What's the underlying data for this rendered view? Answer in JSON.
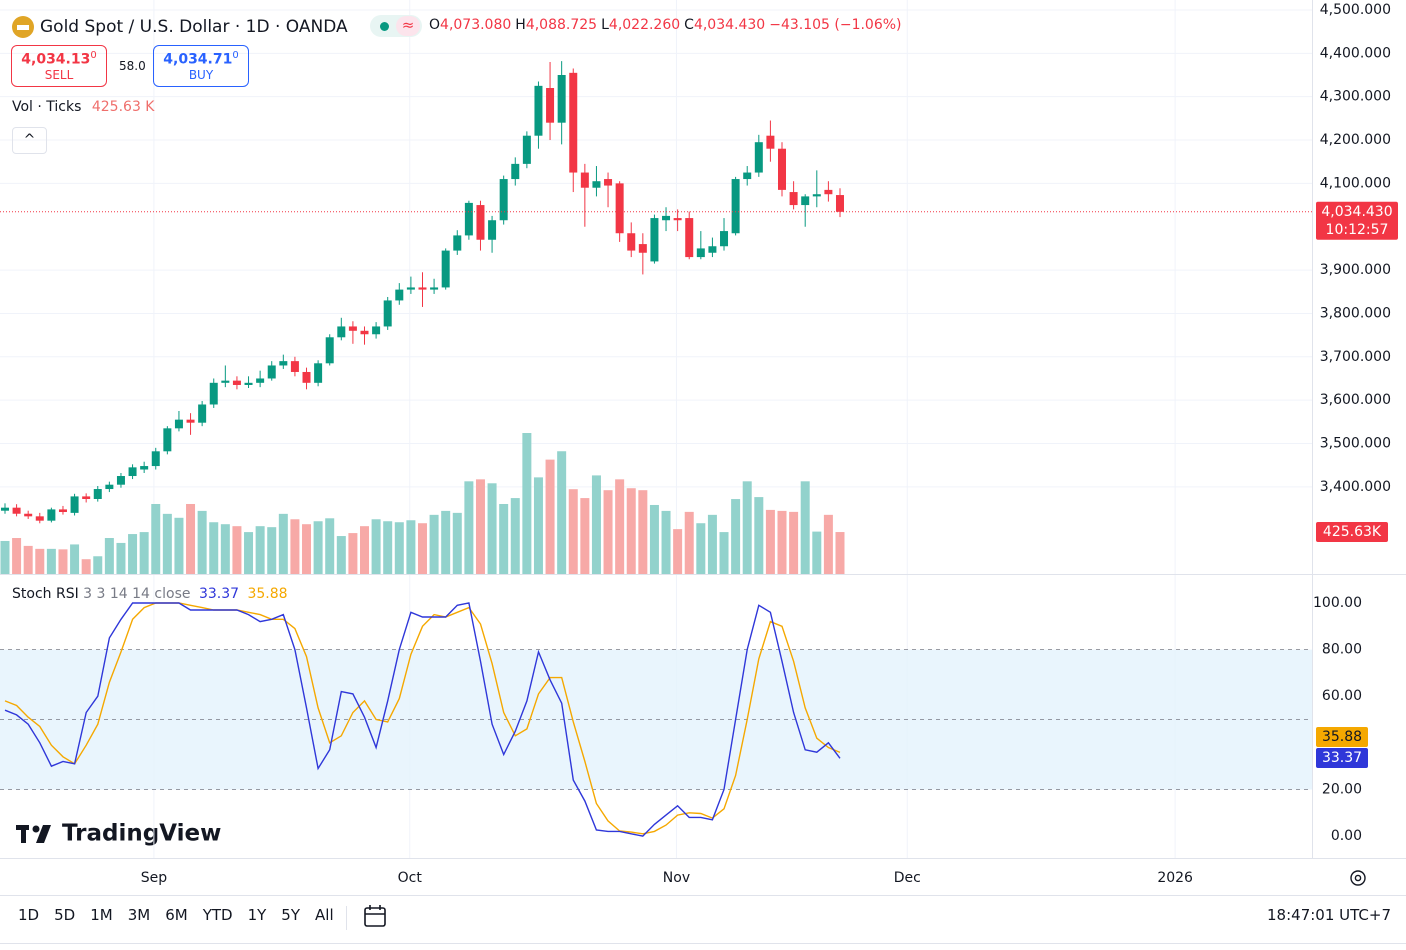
{
  "header": {
    "ohlc": [
      {
        "key": "O",
        "value": "4,073.080"
      },
      {
        "key": "H",
        "value": "4,088.725"
      },
      {
        "key": "L",
        "value": "4,022.260"
      },
      {
        "key": "C",
        "value": "4,034.430"
      }
    ],
    "change": "−43.105 (−1.06%)"
  },
  "trade": {
    "sell_price": "4,034.13",
    "sell_small": "0",
    "sell": "SELL",
    "spread": "58.0",
    "buy_price": "4,034.71",
    "buy_small": "0",
    "buy": "BUY"
  },
  "watermark": "TradingView",
  "toolbar": {
    "ranges": [
      "1D",
      "5D",
      "1M",
      "3M",
      "6M",
      "YTD",
      "1Y",
      "5Y",
      "All"
    ],
    "clock": "18:47:01 UTC+7"
  },
  "chart_data": [
    {
      "type": "candlestick",
      "title": "Gold Spot / U.S. Dollar · 1D · OANDA",
      "up_color": "#089981",
      "down_color": "#f23645",
      "open": [
        3345,
        3352,
        3338,
        3332,
        3322,
        3348,
        3340,
        3378,
        3372,
        3395,
        3405,
        3425,
        3440,
        3448,
        3482,
        3535,
        3555,
        3548,
        3590,
        3640,
        3645,
        3635,
        3640,
        3650,
        3680,
        3690,
        3665,
        3640,
        3685,
        3745,
        3770,
        3760,
        3752,
        3770,
        3830,
        3855,
        3860,
        3855,
        3860,
        3945,
        3980,
        4050,
        3970,
        4015,
        4110,
        4145,
        4210,
        4320,
        4240,
        4355,
        4125,
        4090,
        4110,
        4100,
        3985,
        3960,
        3920,
        4015,
        4020,
        4020,
        3930,
        3940,
        3955,
        3985,
        4110,
        4125,
        4210,
        4180,
        4080,
        4050,
        4070,
        4085,
        4073.08
      ],
      "high": [
        3362,
        3360,
        3345,
        3340,
        3352,
        3356,
        3384,
        3385,
        3402,
        3412,
        3432,
        3452,
        3458,
        3490,
        3540,
        3575,
        3570,
        3598,
        3650,
        3680,
        3655,
        3655,
        3668,
        3690,
        3705,
        3700,
        3675,
        3692,
        3752,
        3790,
        3782,
        3770,
        3780,
        3838,
        3870,
        3885,
        3895,
        3880,
        3950,
        3992,
        4060,
        4060,
        4025,
        4118,
        4160,
        4220,
        4335,
        4380,
        4382,
        4365,
        4145,
        4140,
        4125,
        4105,
        4010,
        3985,
        4028,
        4045,
        4040,
        4035,
        3990,
        3975,
        4020,
        4115,
        4140,
        4212,
        4245,
        4195,
        4105,
        4075,
        4130,
        4105,
        4088.725
      ],
      "low": [
        3338,
        3332,
        3326,
        3316,
        3318,
        3336,
        3334,
        3364,
        3366,
        3388,
        3398,
        3418,
        3432,
        3440,
        3475,
        3528,
        3520,
        3540,
        3582,
        3630,
        3625,
        3628,
        3630,
        3645,
        3672,
        3655,
        3625,
        3632,
        3680,
        3738,
        3730,
        3728,
        3742,
        3762,
        3820,
        3845,
        3815,
        3845,
        3855,
        3935,
        3970,
        3945,
        3940,
        4005,
        4095,
        4135,
        4180,
        4200,
        4190,
        4080,
        4000,
        4070,
        4045,
        3965,
        3930,
        3890,
        3915,
        3990,
        3990,
        3925,
        3925,
        3930,
        3945,
        3980,
        4095,
        4115,
        4150,
        4070,
        4040,
        4000,
        4045,
        4058,
        4022.26
      ],
      "close": [
        3352,
        3338,
        3332,
        3322,
        3348,
        3342,
        3378,
        3372,
        3395,
        3405,
        3425,
        3445,
        3448,
        3482,
        3535,
        3555,
        3548,
        3590,
        3640,
        3645,
        3635,
        3640,
        3650,
        3680,
        3690,
        3665,
        3640,
        3685,
        3745,
        3770,
        3760,
        3752,
        3770,
        3830,
        3855,
        3860,
        3855,
        3860,
        3945,
        3980,
        4055,
        3970,
        4015,
        4110,
        4145,
        4210,
        4325,
        4240,
        4350,
        4125,
        4090,
        4105,
        4095,
        3985,
        3945,
        3940,
        4020,
        4025,
        4015,
        3930,
        3950,
        3955,
        3990,
        4110,
        4125,
        4195,
        4180,
        4085,
        4050,
        4070,
        4075,
        4075,
        4034.43
      ],
      "last_label": "4,034.430",
      "countdown": "10:12:57",
      "ylim": [
        3199,
        4523
      ],
      "yticks": [
        {
          "value": 3400,
          "label": "3,400.000"
        },
        {
          "value": 3500,
          "label": "3,500.000"
        },
        {
          "value": 3600,
          "label": "3,600.000"
        },
        {
          "value": 3700,
          "label": "3,700.000"
        },
        {
          "value": 3800,
          "label": "3,800.000"
        },
        {
          "value": 3900,
          "label": "3,900.000"
        },
        {
          "value": 4100,
          "label": "4,100.000"
        },
        {
          "value": 4200,
          "label": "4,200.000"
        },
        {
          "value": 4300,
          "label": "4,300.000"
        },
        {
          "value": 4400,
          "label": "4,400.000"
        },
        {
          "value": 4500,
          "label": "4,500.000"
        }
      ],
      "xlim": [
        -0.43,
        112.7
      ],
      "xticks": [
        {
          "value": 12.84,
          "label": "Sep"
        },
        {
          "value": 34.9,
          "label": "Oct"
        },
        {
          "value": 57.9,
          "label": "Nov"
        },
        {
          "value": 77.8,
          "label": "Dec"
        },
        {
          "value": 100.9,
          "label": "2026"
        }
      ],
      "grid": true,
      "volume": {
        "name": "Vol · Ticks",
        "legend_value": "425.63 K",
        "axis_label": "425.63K",
        "up_color": "#92d2cc",
        "down_color": "#f7a9a7",
        "values": [
          335,
          365,
          285,
          255,
          255,
          250,
          300,
          150,
          180,
          365,
          315,
          405,
          425,
          710,
          610,
          570,
          710,
          640,
          525,
          505,
          485,
          425,
          485,
          475,
          610,
          555,
          505,
          535,
          565,
          385,
          415,
          485,
          555,
          535,
          525,
          545,
          515,
          600,
          640,
          620,
          940,
          960,
          920,
          710,
          770,
          1430,
          980,
          1160,
          1245,
          860,
          770,
          1000,
          850,
          960,
          870,
          850,
          700,
          640,
          455,
          630,
          515,
          600,
          425,
          760,
          940,
          780,
          650,
          640,
          630,
          940,
          430,
          600,
          425.63
        ]
      }
    },
    {
      "type": "line",
      "title": "Stoch RSI",
      "params": "3 3 14 14 close",
      "ylim": [
        -9.4,
        112
      ],
      "yticks": [
        {
          "value": 0,
          "label": "0.00"
        },
        {
          "value": 20,
          "label": "20.00"
        },
        {
          "value": 40,
          "label": "40.00"
        },
        {
          "value": 60,
          "label": "60.00"
        },
        {
          "value": 80,
          "label": "80.00"
        },
        {
          "value": 100,
          "label": "100.00"
        }
      ],
      "bands": {
        "lower": 20,
        "middle": 50,
        "upper": 80
      },
      "band_color": "#e3f2fd",
      "series": [
        {
          "color": "#2f37d9",
          "values": [
            54,
            52,
            48,
            40,
            30,
            32,
            31,
            53,
            60,
            85,
            93,
            100,
            100,
            100,
            100,
            100,
            97,
            97,
            97,
            97,
            97,
            95,
            92,
            93,
            95,
            80,
            55,
            29,
            37,
            62,
            61,
            51,
            38,
            58,
            80,
            96,
            94,
            94,
            94,
            99,
            100,
            75,
            48,
            35,
            45,
            58,
            79,
            67,
            57,
            24,
            15,
            2.6,
            2,
            2,
            1,
            0,
            5,
            9,
            13,
            8,
            8,
            7,
            20,
            50,
            80,
            99,
            96,
            75,
            53,
            37,
            36,
            40,
            33.37
          ]
        },
        {
          "color": "#f5a800",
          "values": [
            58,
            56,
            51,
            47,
            39,
            34,
            31,
            39,
            48,
            66,
            79,
            93,
            98,
            100,
            100,
            100,
            99,
            98,
            97,
            97,
            97,
            96,
            95,
            93,
            93,
            89,
            77,
            55,
            40,
            43,
            53,
            58,
            50,
            49,
            59,
            78,
            90,
            95,
            94,
            96,
            98,
            91,
            74,
            53,
            43,
            46,
            61,
            68,
            68,
            49,
            32,
            14,
            6.5,
            2.2,
            1.7,
            1,
            2,
            4.7,
            9,
            10,
            9.7,
            7.7,
            11.7,
            26,
            50,
            76,
            92,
            90,
            75,
            55,
            42,
            38,
            35.88
          ]
        }
      ]
    }
  ]
}
